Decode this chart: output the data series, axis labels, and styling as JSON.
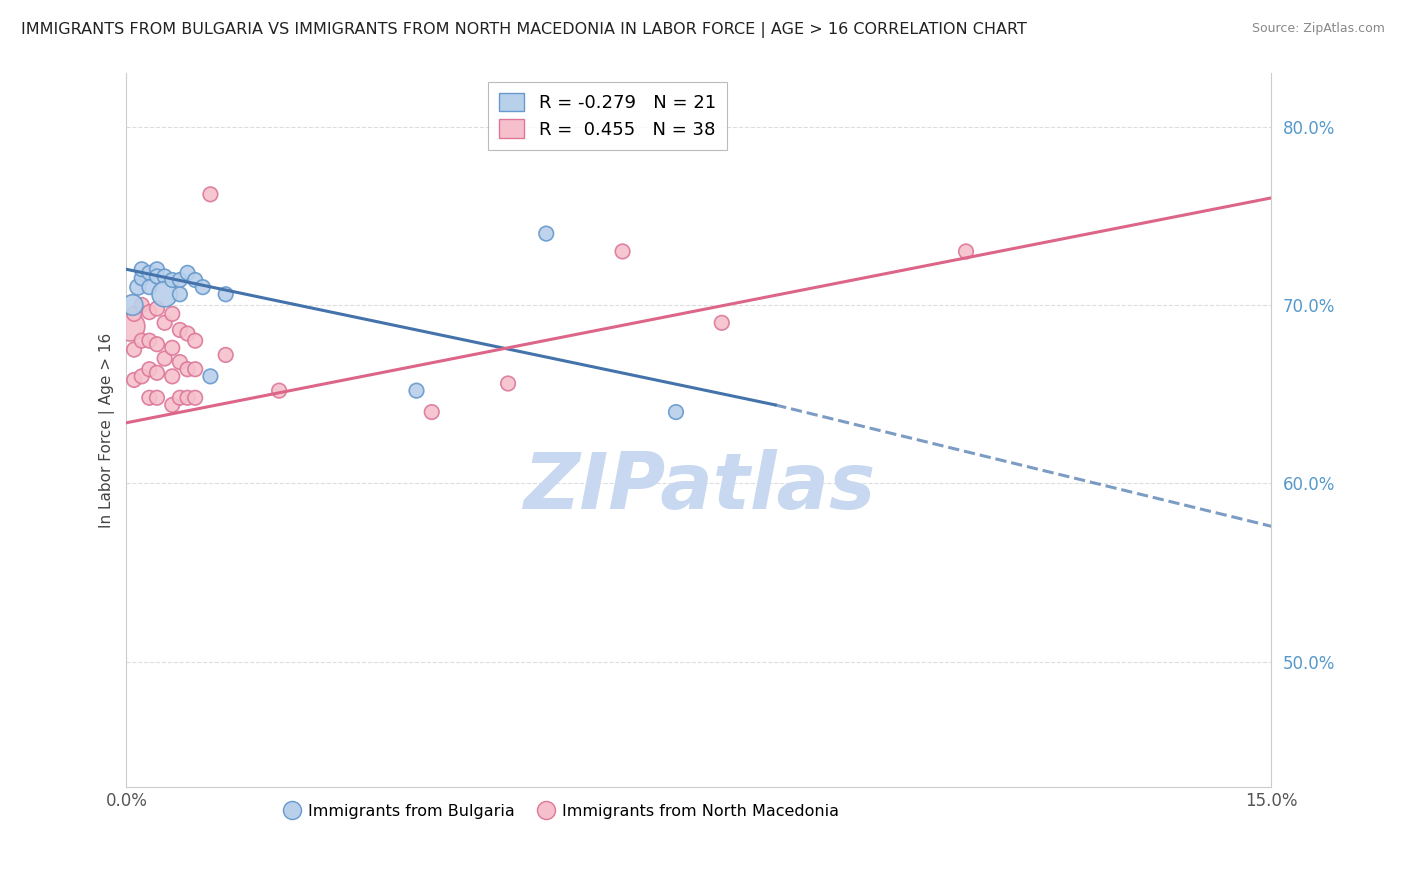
{
  "title": "IMMIGRANTS FROM BULGARIA VS IMMIGRANTS FROM NORTH MACEDONIA IN LABOR FORCE | AGE > 16 CORRELATION CHART",
  "source": "Source: ZipAtlas.com",
  "ylabel": "In Labor Force | Age > 16",
  "xlim": [
    0.0,
    0.15
  ],
  "ylim": [
    0.43,
    0.83
  ],
  "legend_blue_label": "Immigrants from Bulgaria",
  "legend_pink_label": "Immigrants from North Macedonia",
  "R_blue": -0.279,
  "N_blue": 21,
  "R_pink": 0.455,
  "N_pink": 38,
  "blue_color": "#b8d0ea",
  "blue_edge_color": "#6699cc",
  "blue_line_color": "#4472aa",
  "pink_color": "#f5c0cc",
  "pink_edge_color": "#dd7799",
  "pink_line_color": "#dd6688",
  "blue_scatter_x": [
    0.0008,
    0.0015,
    0.002,
    0.002,
    0.003,
    0.003,
    0.004,
    0.004,
    0.005,
    0.005,
    0.006,
    0.007,
    0.007,
    0.008,
    0.009,
    0.01,
    0.011,
    0.013,
    0.038,
    0.055,
    0.072
  ],
  "blue_scatter_y": [
    0.7,
    0.71,
    0.715,
    0.72,
    0.718,
    0.71,
    0.72,
    0.716,
    0.716,
    0.706,
    0.714,
    0.714,
    0.706,
    0.718,
    0.714,
    0.71,
    0.66,
    0.706,
    0.652,
    0.74,
    0.64
  ],
  "blue_scatter_sizes": [
    220,
    130,
    110,
    110,
    110,
    110,
    110,
    110,
    110,
    330,
    110,
    110,
    110,
    110,
    110,
    110,
    110,
    110,
    110,
    110,
    110
  ],
  "pink_scatter_x": [
    0.0005,
    0.001,
    0.001,
    0.001,
    0.002,
    0.002,
    0.002,
    0.003,
    0.003,
    0.003,
    0.003,
    0.004,
    0.004,
    0.004,
    0.004,
    0.005,
    0.005,
    0.006,
    0.006,
    0.006,
    0.006,
    0.007,
    0.007,
    0.007,
    0.008,
    0.008,
    0.008,
    0.009,
    0.009,
    0.009,
    0.011,
    0.013,
    0.02,
    0.04,
    0.05,
    0.065,
    0.078,
    0.11
  ],
  "pink_scatter_y": [
    0.688,
    0.695,
    0.675,
    0.658,
    0.7,
    0.68,
    0.66,
    0.696,
    0.68,
    0.664,
    0.648,
    0.698,
    0.678,
    0.662,
    0.648,
    0.69,
    0.67,
    0.695,
    0.676,
    0.66,
    0.644,
    0.686,
    0.668,
    0.648,
    0.684,
    0.664,
    0.648,
    0.68,
    0.664,
    0.648,
    0.762,
    0.672,
    0.652,
    0.64,
    0.656,
    0.73,
    0.69,
    0.73
  ],
  "pink_scatter_sizes": [
    440,
    110,
    110,
    110,
    110,
    110,
    110,
    110,
    110,
    110,
    110,
    110,
    110,
    110,
    110,
    110,
    110,
    110,
    110,
    110,
    110,
    110,
    110,
    110,
    110,
    110,
    110,
    110,
    110,
    110,
    110,
    110,
    110,
    110,
    110,
    110,
    110,
    110
  ],
  "blue_line_x0": 0.0,
  "blue_line_y0": 0.72,
  "blue_line_x1": 0.085,
  "blue_line_y1": 0.644,
  "blue_line_x1_dashed": 0.15,
  "blue_line_y1_dashed": 0.576,
  "pink_line_x0": 0.0,
  "pink_line_y0": 0.634,
  "pink_line_x1": 0.15,
  "pink_line_y1": 0.76,
  "watermark": "ZIPatlas",
  "watermark_color": "#c8d8f0",
  "background_color": "#ffffff",
  "grid_color": "#dddddd"
}
